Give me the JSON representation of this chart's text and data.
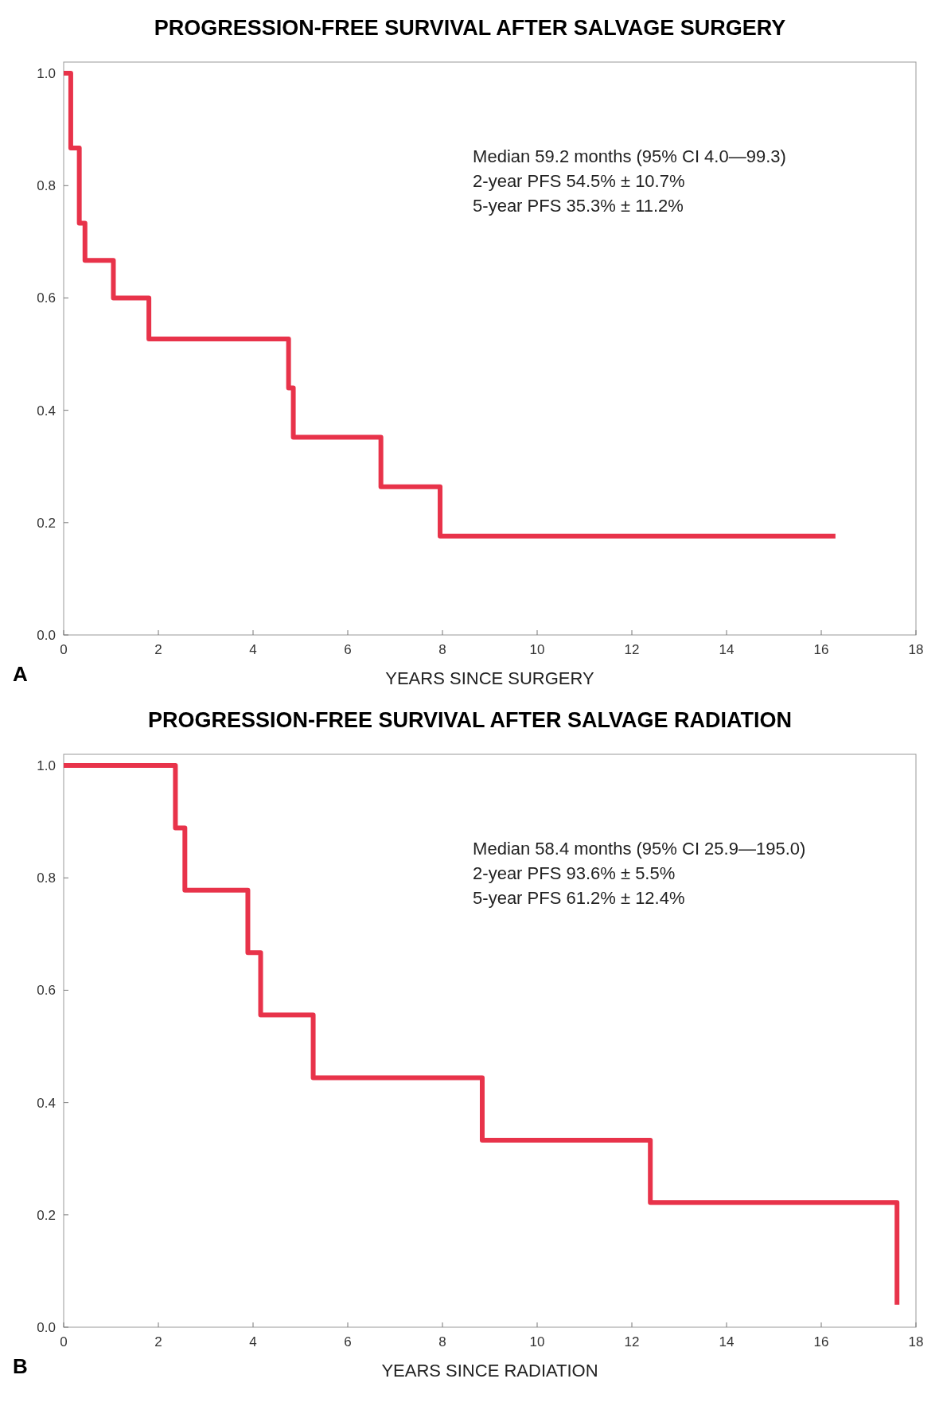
{
  "chart_data": [
    {
      "type": "step",
      "title": "PROGRESSION-FREE SURVIVAL AFTER SALVAGE SURGERY",
      "xlabel": "YEARS SINCE SURGERY",
      "series": [
        {
          "color": "#e8334a",
          "x": [
            0,
            0.15,
            0.33,
            0.45,
            1.05,
            1.8,
            4.75,
            4.85,
            6.7,
            7.95,
            16.3
          ],
          "values": [
            1.0,
            0.867,
            0.733,
            0.667,
            0.6,
            0.527,
            0.44,
            0.352,
            0.264,
            0.176,
            0.176
          ]
        }
      ],
      "xlim": [
        0,
        18
      ],
      "xticks": [
        0,
        2,
        4,
        6,
        8,
        10,
        12,
        14,
        16,
        18
      ],
      "ylim": [
        0,
        1.02
      ],
      "yticks": [
        {
          "value": 0,
          "label": "0.0"
        },
        {
          "value": 0.2,
          "label": "0.2"
        },
        {
          "value": 0.4,
          "label": "0.4"
        },
        {
          "value": 0.6,
          "label": "0.6"
        },
        {
          "value": 0.8,
          "label": "0.8"
        },
        {
          "value": 1,
          "label": "1.0"
        }
      ],
      "grid": false,
      "annotations": [
        "Median 59.2 months (95% CI 4.0—99.3)",
        "2-year PFS 54.5% ± 10.7%",
        "5-year PFS 35.3% ± 11.2%",
        "A"
      ]
    },
    {
      "type": "step",
      "title": "PROGRESSION-FREE SURVIVAL AFTER SALVAGE RADIATION",
      "xlabel": "YEARS SINCE RADIATION",
      "series": [
        {
          "color": "#e8334a",
          "x": [
            0,
            2.36,
            2.56,
            3.89,
            4.16,
            5.27,
            8.84,
            12.39,
            17.6
          ],
          "values": [
            1.0,
            0.889,
            0.778,
            0.667,
            0.556,
            0.444,
            0.333,
            0.222,
            0.04
          ]
        }
      ],
      "xlim": [
        0,
        18
      ],
      "xticks": [
        0,
        2,
        4,
        6,
        8,
        10,
        12,
        14,
        16,
        18
      ],
      "ylim": [
        0,
        1.02
      ],
      "yticks": [
        {
          "value": 0,
          "label": "0.0"
        },
        {
          "value": 0.2,
          "label": "0.2"
        },
        {
          "value": 0.4,
          "label": "0.4"
        },
        {
          "value": 0.6,
          "label": "0.6"
        },
        {
          "value": 0.8,
          "label": "0.8"
        },
        {
          "value": 1,
          "label": "1.0"
        }
      ],
      "grid": false,
      "annotations": [
        "Median 58.4 months (95% CI 25.9—195.0)",
        "2-year PFS 93.6% ± 5.5%",
        "5-year PFS 61.2% ± 12.4%",
        "B"
      ]
    }
  ]
}
